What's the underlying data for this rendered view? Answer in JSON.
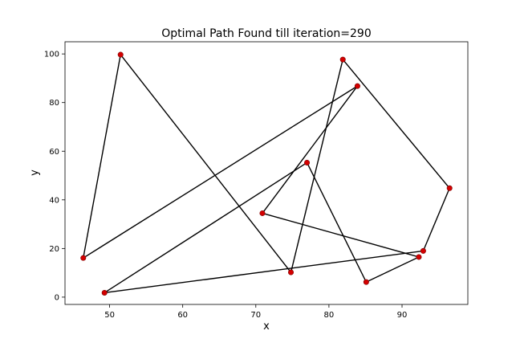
{
  "chart_data": {
    "type": "line",
    "title": "Optimal Path Found till iteration=290",
    "xlabel": "x",
    "ylabel": "y",
    "xlim": [
      43.9,
      99.0
    ],
    "ylim": [
      -3.0,
      105.0
    ],
    "xticks": [
      50,
      60,
      70,
      80,
      90
    ],
    "yticks": [
      0,
      20,
      40,
      60,
      80,
      100
    ],
    "grid": false,
    "line_color": "#000000",
    "point_color": "#d40000",
    "path": [
      {
        "x": 51.5,
        "y": 99.7
      },
      {
        "x": 74.8,
        "y": 10.2
      },
      {
        "x": 81.9,
        "y": 97.7
      },
      {
        "x": 96.5,
        "y": 44.8
      },
      {
        "x": 92.9,
        "y": 19.0
      },
      {
        "x": 49.3,
        "y": 1.8
      },
      {
        "x": 77.0,
        "y": 55.3
      },
      {
        "x": 85.1,
        "y": 6.2
      },
      {
        "x": 92.3,
        "y": 16.5
      },
      {
        "x": 70.9,
        "y": 34.5
      },
      {
        "x": 83.9,
        "y": 86.8
      },
      {
        "x": 46.4,
        "y": 16.1
      },
      {
        "x": 51.5,
        "y": 99.7
      }
    ]
  }
}
